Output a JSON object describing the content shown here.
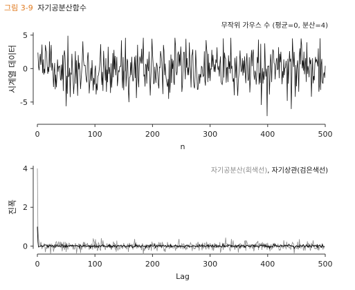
{
  "figure": {
    "label": "그림 3-9",
    "title": "자기공분산함수"
  },
  "chart_data": [
    {
      "type": "line",
      "title": "무작위 가우스 수 (평균=0, 분산=4)",
      "xlabel": "n",
      "ylabel": "시계열 데이터",
      "xlim": [
        0,
        500
      ],
      "ylim": [
        -7.5,
        5.5
      ],
      "xticks": [
        "0",
        "100",
        "200",
        "300",
        "400",
        "500"
      ],
      "yticks": [
        "5",
        "0",
        "-5"
      ],
      "series_color": "#111111",
      "noise": {
        "mean": 0,
        "variance": 4,
        "count": 500
      },
      "notable_points": [
        {
          "x": 398,
          "y": -7.1
        },
        {
          "x": 52,
          "y": 4.9
        }
      ]
    },
    {
      "type": "line",
      "title": "",
      "xlabel": "Lag",
      "ylabel": "진폭",
      "xlim": [
        0,
        500
      ],
      "ylim": [
        -0.2,
        4.5
      ],
      "xticks": [
        "0",
        "100",
        "200",
        "300",
        "400",
        "500"
      ],
      "yticks": [
        "4",
        "2",
        "0"
      ],
      "legend": {
        "gray_label": "자기공분산(회색선)",
        "separator": ", ",
        "black_label": "자기상관(검은색선)"
      },
      "series": [
        {
          "name": "자기공분산",
          "color": "#8a8a8a",
          "lag0": 4.0,
          "noise_std": 0.15
        },
        {
          "name": "자기상관",
          "color": "#111111",
          "lag0": 1.0,
          "noise_std": 0.04
        }
      ]
    }
  ]
}
